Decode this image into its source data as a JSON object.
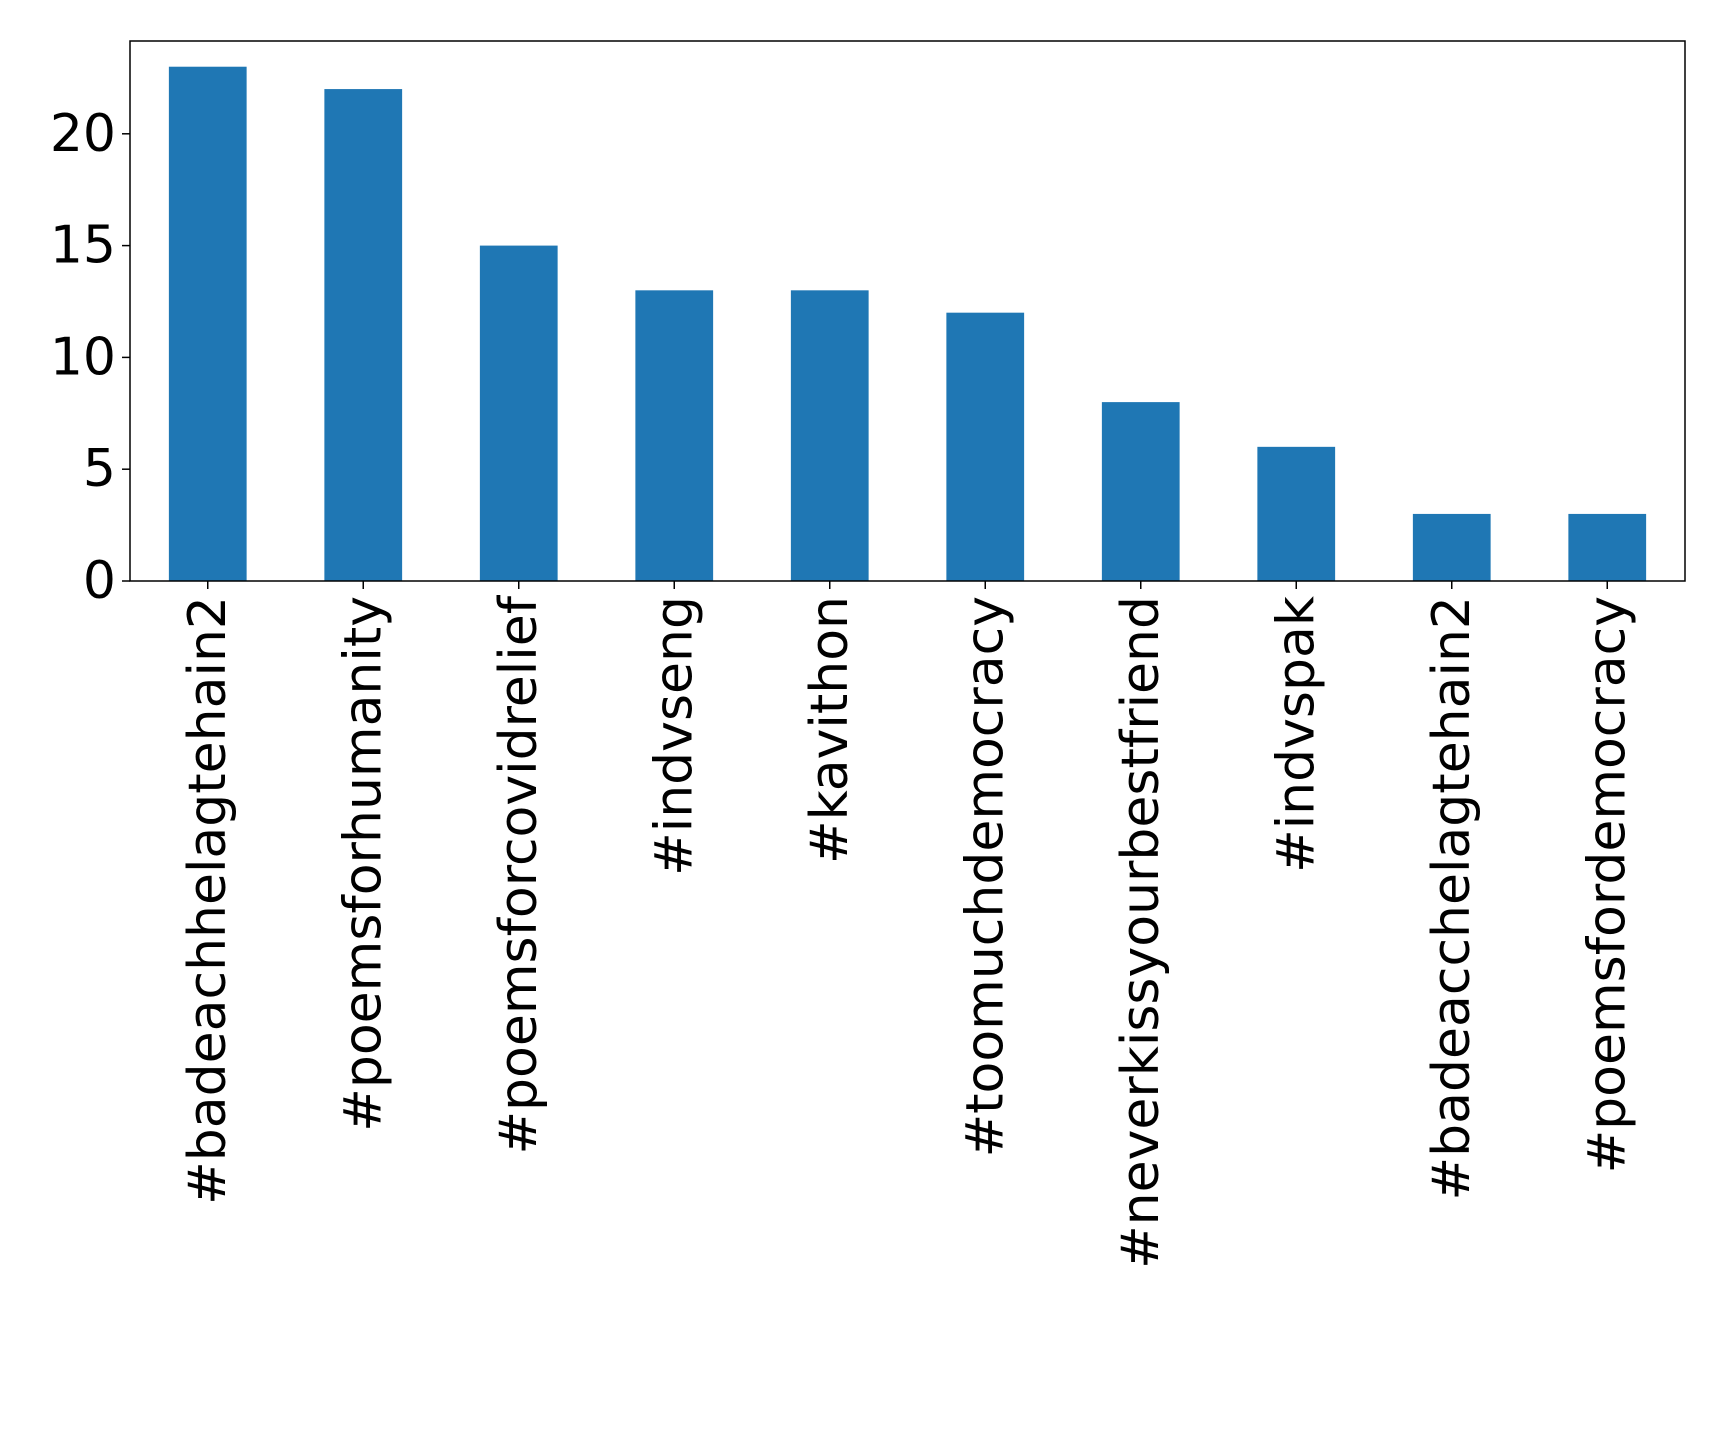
{
  "chart_data": {
    "type": "bar",
    "title": "",
    "xlabel": "",
    "ylabel": "",
    "categories": [
      "#badeachhelagtehain2",
      "#poemsforhumanity",
      "#poemsforcovidrelief",
      "#indvseng",
      "#kavithon",
      "#toomuchdemocracy",
      "#neverkissyourbestfriend",
      "#indvspak",
      "#badeacchelagtehain2",
      "#poemsfordemocracy"
    ],
    "values": [
      23,
      22,
      15,
      13,
      13,
      12,
      8,
      6,
      3,
      3
    ],
    "ylim": [
      0,
      24.15
    ],
    "yticks": [
      0,
      5,
      10,
      15,
      20
    ],
    "grid": false,
    "legend": "none",
    "bar_color": "#1f77b4"
  }
}
